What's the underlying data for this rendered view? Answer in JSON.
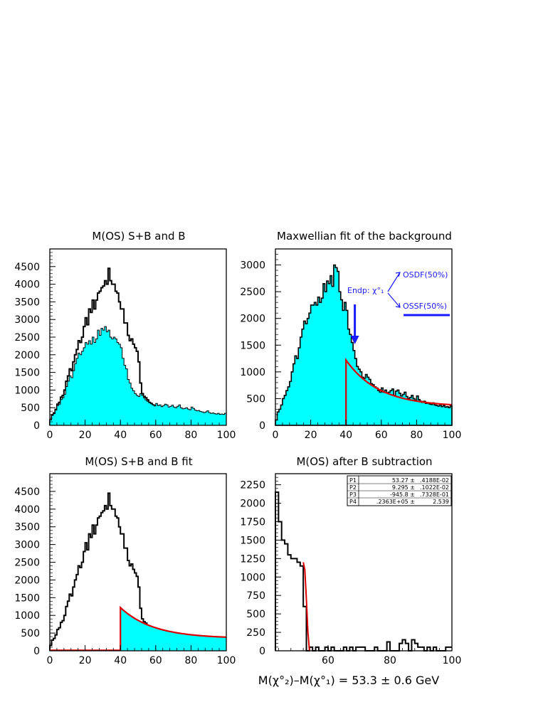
{
  "colors": {
    "fill": "#00ffff",
    "outline": "#000000",
    "fit": "#dd0000",
    "annotation": "#1a1aff"
  },
  "chart_data": [
    {
      "type": "area",
      "title": "M(OS)  S+B and B",
      "xlim": [
        0,
        100
      ],
      "ylim": [
        0,
        5000
      ],
      "xticks": [
        0,
        20,
        40,
        60,
        80,
        100
      ],
      "yticks": [
        0,
        500,
        1000,
        1500,
        2000,
        2500,
        3000,
        3500,
        4000,
        4500
      ],
      "bin_width": 1,
      "series": [
        {
          "style": "outline",
          "values": [
            150,
            300,
            350,
            450,
            600,
            650,
            800,
            850,
            1000,
            1250,
            1400,
            1600,
            1550,
            1800,
            2000,
            2150,
            2400,
            2350,
            2500,
            2800,
            3050,
            2850,
            3300,
            3200,
            3550,
            3300,
            3550,
            3750,
            3800,
            3900,
            3950,
            4100,
            4000,
            4450,
            4100,
            4000,
            4000,
            3800,
            3750,
            3500,
            3300,
            3300,
            2900,
            2900,
            2550,
            2400,
            2450,
            2300,
            2200,
            2100,
            1800,
            1200,
            900,
            820,
            780,
            720,
            650,
            620,
            580,
            550,
            560,
            540,
            520,
            520,
            500,
            480,
            470,
            460,
            450,
            440,
            430,
            420,
            410,
            400,
            390,
            380,
            370,
            365,
            360,
            355,
            350,
            345,
            340,
            340,
            335,
            330,
            330,
            325,
            320,
            320,
            315,
            315,
            310,
            310,
            305,
            305,
            300,
            300,
            300,
            300
          ]
        },
        {
          "style": "filled",
          "values": [
            150,
            280,
            330,
            430,
            560,
            600,
            730,
            780,
            880,
            1100,
            1250,
            1400,
            1350,
            1550,
            1750,
            1900,
            2050,
            2000,
            2100,
            2200,
            2350,
            2300,
            2400,
            2300,
            2500,
            2350,
            2450,
            2700,
            2550,
            2750,
            2700,
            2800,
            2650,
            2700,
            2500,
            2450,
            2500,
            2450,
            2350,
            2300,
            2200,
            1900,
            1700,
            1600,
            1300,
            1200,
            1050,
            980,
            900,
            850,
            820,
            900,
            850,
            780,
            720,
            680,
            640,
            610,
            580,
            550,
            620,
            560,
            580,
            530,
            560,
            600,
            580,
            520,
            540,
            570,
            520,
            500,
            540,
            580,
            500,
            470,
            480,
            500,
            460,
            440,
            520,
            480,
            430,
            410,
            420,
            390,
            380,
            360,
            380,
            410,
            360,
            340,
            350,
            330,
            320,
            340,
            310,
            320,
            310,
            340
          ]
        }
      ]
    },
    {
      "type": "area",
      "title": "Maxwellian fit of the background",
      "xlim": [
        0,
        100
      ],
      "ylim": [
        0,
        3300
      ],
      "xticks": [
        0,
        20,
        40,
        60,
        80,
        100
      ],
      "yticks": [
        0,
        500,
        1000,
        1500,
        2000,
        2500,
        3000
      ],
      "bin_width": 1,
      "series": [
        {
          "style": "filled_outline",
          "values": [
            100,
            250,
            300,
            380,
            500,
            560,
            650,
            720,
            820,
            1000,
            1150,
            1300,
            1250,
            1450,
            1650,
            1800,
            1950,
            1900,
            2000,
            2100,
            2250,
            2250,
            2300,
            2250,
            2400,
            2300,
            2380,
            2650,
            2500,
            2700,
            2650,
            2800,
            2600,
            3000,
            2950,
            2880,
            2500,
            2350,
            2150,
            2300,
            2150,
            1800,
            1700,
            1550,
            1400,
            1250,
            1100,
            1050,
            1000,
            900,
            880,
            950,
            900,
            860,
            780,
            760,
            720,
            700,
            650,
            620,
            700,
            620,
            660,
            610,
            620,
            650,
            680,
            560,
            640,
            660,
            600,
            550,
            580,
            620,
            540,
            500,
            520,
            560,
            500,
            470,
            550,
            480,
            450,
            430,
            450,
            410,
            420,
            400,
            390,
            420,
            380,
            370,
            360,
            380,
            350,
            370,
            340,
            350,
            330,
            360
          ]
        },
        {
          "style": "fit",
          "x_start": 40,
          "x_end": 100,
          "peak": 1220,
          "end": 350
        }
      ],
      "annotations": {
        "endpoint_label": "Endp: χ°₁",
        "osdf_label": "OSDF(50%)",
        "ossf_label": "OSSF(50%)",
        "arrow_x": 45
      }
    },
    {
      "type": "area",
      "title": "M(OS)  S+B and B fit",
      "xlim": [
        0,
        100
      ],
      "ylim": [
        0,
        5000
      ],
      "xticks": [
        0,
        20,
        40,
        60,
        80,
        100
      ],
      "yticks": [
        0,
        500,
        1000,
        1500,
        2000,
        2500,
        3000,
        3500,
        4000,
        4500
      ],
      "bin_width": 1,
      "series": [
        {
          "style": "outline",
          "values": [
            150,
            300,
            350,
            450,
            600,
            650,
            800,
            850,
            1000,
            1250,
            1400,
            1600,
            1550,
            1800,
            2000,
            2150,
            2400,
            2350,
            2500,
            2800,
            3050,
            2850,
            3300,
            3200,
            3550,
            3300,
            3550,
            3750,
            3800,
            3900,
            3950,
            4100,
            4000,
            4450,
            4100,
            4000,
            4000,
            3800,
            3750,
            3500,
            3300,
            3300,
            2900,
            2900,
            2550,
            2400,
            2450,
            2300,
            2200,
            2100,
            1800,
            1200,
            900,
            820,
            780,
            720,
            650,
            620,
            580,
            550,
            560,
            540,
            520,
            520,
            500,
            480,
            470,
            460,
            450,
            440,
            430,
            420,
            410,
            400,
            390,
            380,
            370,
            365,
            360,
            355,
            350,
            345,
            340,
            340,
            335,
            330,
            330,
            325,
            320,
            320,
            315,
            315,
            310,
            310,
            305,
            305,
            300,
            300,
            300,
            300
          ]
        },
        {
          "style": "fit_filled",
          "x_start": 40,
          "x_end": 100,
          "peak": 1220,
          "end": 350
        }
      ]
    },
    {
      "type": "line",
      "title": "M(OS) after B subtraction",
      "xlim": [
        43,
        100
      ],
      "ylim": [
        0,
        2400
      ],
      "xticks": [
        60,
        80,
        100
      ],
      "yticks": [
        0,
        250,
        500,
        750,
        1000,
        1250,
        1500,
        1750,
        2000,
        2250
      ],
      "bin_width": 1,
      "series": [
        {
          "style": "outline",
          "x_start": 43,
          "values": [
            2150,
            1750,
            1500,
            1450,
            1300,
            1250,
            1250,
            1200,
            1150,
            600,
            0,
            50,
            0,
            50,
            0,
            0,
            50,
            0,
            50,
            0,
            0,
            0,
            50,
            0,
            50,
            0,
            50,
            50,
            50,
            0,
            0,
            0,
            50,
            0,
            0,
            0,
            120,
            0,
            0,
            0,
            100,
            150,
            100,
            0,
            150,
            100,
            50,
            50,
            0,
            50,
            0,
            50,
            0,
            0,
            0,
            50,
            50
          ]
        },
        {
          "style": "fit",
          "points": [
            [
              52.0,
              1200
            ],
            [
              52.5,
              1100
            ],
            [
              53.0,
              700
            ],
            [
              53.5,
              250
            ],
            [
              54.0,
              0
            ]
          ]
        }
      ],
      "stats": [
        {
          "name": "P1",
          "value": "53.27 ±",
          "error": ".4188E-02"
        },
        {
          "name": "P2",
          "value": "9.295 ±",
          "error": ".1022E-02"
        },
        {
          "name": "P3",
          "value": "-945.8 ±",
          "error": ".7328E-01"
        },
        {
          "name": "P4",
          "value": ".2363E+05 ±",
          "error": "2.539"
        }
      ],
      "caption": "M(χ°₂)–M(χ°₁) = 53.3 ± 0.6 GeV"
    }
  ]
}
